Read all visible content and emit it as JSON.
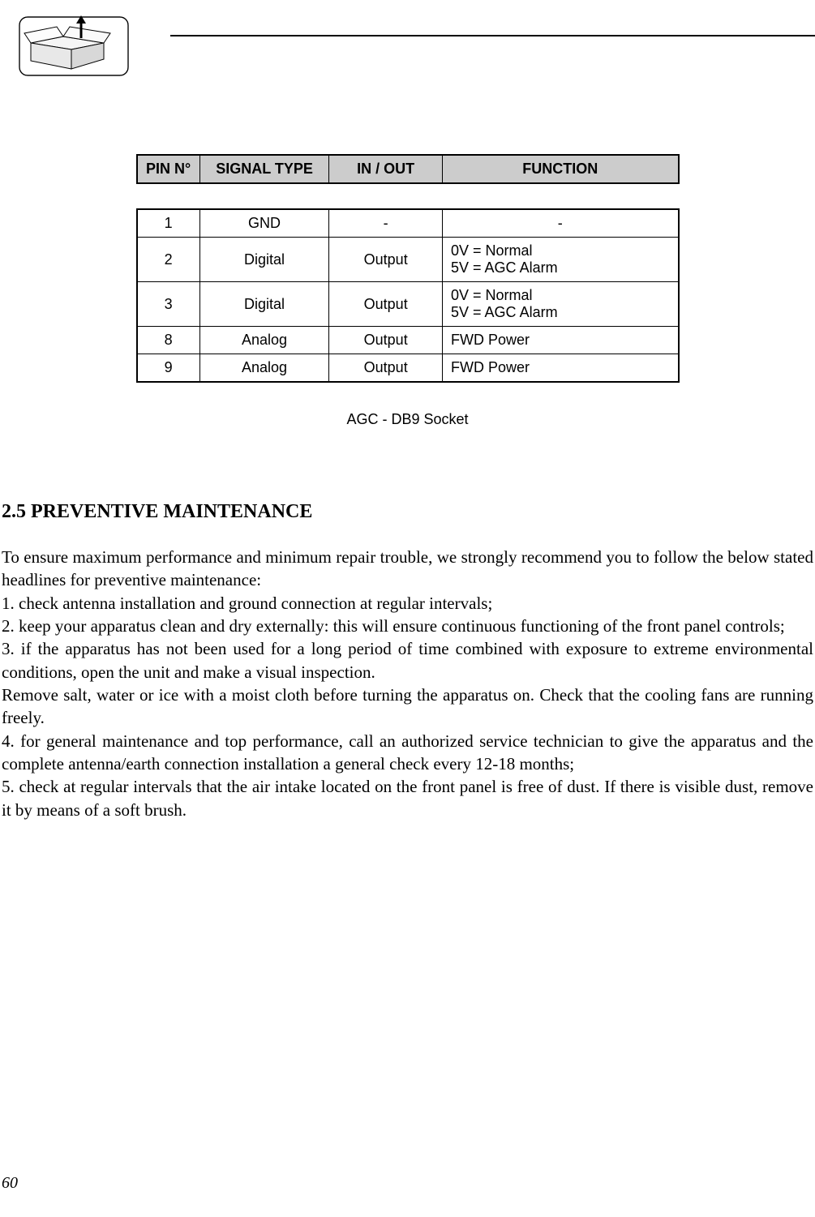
{
  "table": {
    "headers": {
      "pin": "PIN N°",
      "signal": "SIGNAL TYPE",
      "inout": "IN / OUT",
      "function": "FUNCTION"
    },
    "rows": [
      {
        "pin": "1",
        "signal": "GND",
        "inout": "-",
        "function_line1": "-",
        "function_line2": "",
        "center_func": true
      },
      {
        "pin": "2",
        "signal": "Digital",
        "inout": "Output",
        "function_line1": "0V = Normal",
        "function_line2": "5V = AGC Alarm",
        "center_func": false
      },
      {
        "pin": "3",
        "signal": "Digital",
        "inout": "Output",
        "function_line1": "0V = Normal",
        "function_line2": "5V = AGC Alarm",
        "center_func": false
      },
      {
        "pin": "8",
        "signal": "Analog",
        "inout": "Output",
        "function_line1": "FWD Power",
        "function_line2": "",
        "center_func": false
      },
      {
        "pin": "9",
        "signal": "Analog",
        "inout": "Output",
        "function_line1": "FWD Power",
        "function_line2": "",
        "center_func": false
      }
    ],
    "caption": "AGC - DB9 Socket"
  },
  "section": {
    "heading": "2.5 PREVENTIVE MAINTENANCE",
    "paragraphs": [
      "To ensure maximum performance and minimum repair trouble, we strongly recommend you to follow the below stated headlines for preventive maintenance:",
      "1. check antenna installation and ground connection at regular intervals;",
      "2. keep your apparatus clean and dry externally: this will ensure continuous functioning of the front panel controls;",
      "3. if the apparatus has not been used for a long period of time combined with exposure to extreme environ­mental conditions, open the unit and make a visual inspection.",
      "Remove salt, water or ice with a moist cloth before turning the apparatus on. Check that the cooling fans are running freely.",
      "4. for general maintenance and top performance, call an authorized service technician to give the apparatus and the complete antenna/earth connection installation a general check every 12-18 months;",
      "5. check at regular intervals that the air intake located on the front panel is free of dust. If there is visible dust, remove it by means of a soft brush."
    ]
  },
  "page_number": "60"
}
